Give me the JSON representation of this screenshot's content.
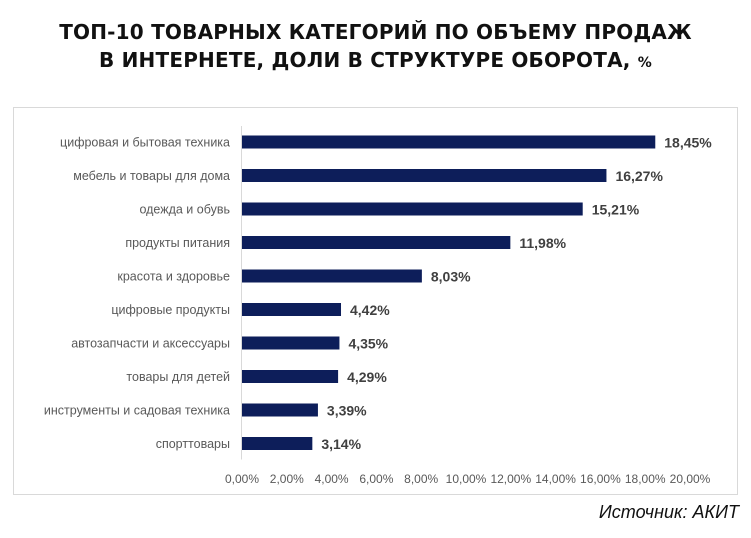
{
  "title": {
    "line1": "ТОП-10 ТОВАРНЫХ КАТЕГОРИЙ ПО ОБЪЕМУ ПРОДАЖ",
    "line2": "В ИНТЕРНЕТЕ, ДОЛИ В СТРУКТУРЕ ОБОРОТА,",
    "unit": "%"
  },
  "source": "Источник: АКИТ",
  "colors": {
    "bar": "#0d1e5a",
    "axis_text": "#595959",
    "label_text": "#404040"
  },
  "chart_data": {
    "type": "bar",
    "orientation": "horizontal",
    "categories": [
      "цифровая и бытовая техника",
      "мебель и товары для дома",
      "одежда и обувь",
      "продукты питания",
      "красота и здоровье",
      "цифровые продукты",
      "автозапчасти и аксессуары",
      "товары для детей",
      "инструменты и садовая техника",
      "спорттовары"
    ],
    "values": [
      18.45,
      16.27,
      15.21,
      11.98,
      8.03,
      4.42,
      4.35,
      4.29,
      3.39,
      3.14
    ],
    "data_labels": [
      "18,45%",
      "16,27%",
      "15,21%",
      "11,98%",
      "8,03%",
      "4,42%",
      "4,35%",
      "4,29%",
      "3,39%",
      "3,14%"
    ],
    "xlim": [
      0,
      20
    ],
    "x_ticks": [
      0,
      2,
      4,
      6,
      8,
      10,
      12,
      14,
      16,
      18,
      20
    ],
    "x_tick_labels": [
      "0,00%",
      "2,00%",
      "4,00%",
      "6,00%",
      "8,00%",
      "10,00%",
      "12,00%",
      "14,00%",
      "16,00%",
      "18,00%",
      "20,00%"
    ],
    "grid": false,
    "legend": "none"
  }
}
